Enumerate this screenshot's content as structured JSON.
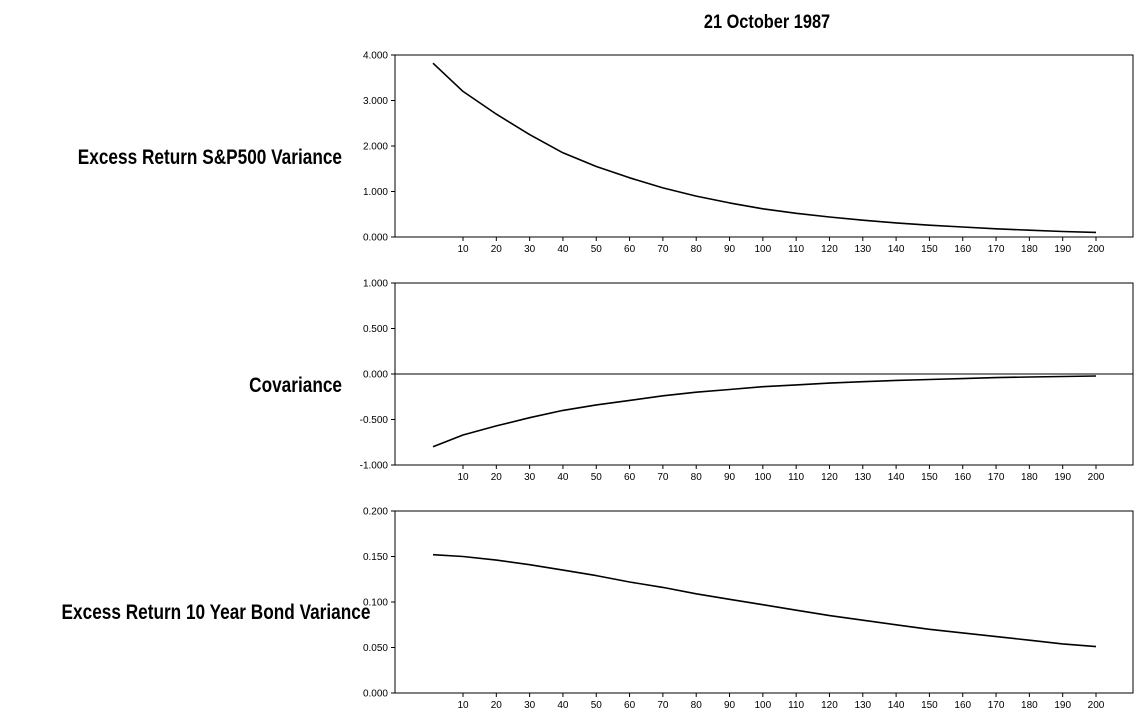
{
  "title": "21 October 1987",
  "chart_data": [
    {
      "type": "line",
      "ylabel": "Excess Return S&P500 Variance",
      "ylim": [
        0,
        4
      ],
      "yticks": [
        "0.000",
        "1.000",
        "2.000",
        "3.000",
        "4.000"
      ],
      "xticks": [
        "10",
        "20",
        "30",
        "40",
        "50",
        "60",
        "70",
        "80",
        "90",
        "100",
        "110",
        "120",
        "130",
        "140",
        "150",
        "160",
        "170",
        "180",
        "190",
        "200"
      ],
      "xlim": [
        1,
        200
      ],
      "zero_line": false,
      "series": [
        {
          "x": [
            1,
            10,
            20,
            30,
            40,
            50,
            60,
            70,
            80,
            90,
            100,
            110,
            120,
            130,
            140,
            150,
            160,
            170,
            180,
            190,
            200
          ],
          "y": [
            3.82,
            3.2,
            2.7,
            2.25,
            1.85,
            1.55,
            1.3,
            1.08,
            0.9,
            0.75,
            0.62,
            0.52,
            0.44,
            0.37,
            0.31,
            0.26,
            0.22,
            0.18,
            0.15,
            0.12,
            0.1
          ]
        }
      ]
    },
    {
      "type": "line",
      "ylabel": "Covariance",
      "ylim": [
        -1,
        1
      ],
      "yticks": [
        "-1.000",
        "-0.500",
        "0.000",
        "0.500",
        "1.000"
      ],
      "xticks": [
        "10",
        "20",
        "30",
        "40",
        "50",
        "60",
        "70",
        "80",
        "90",
        "100",
        "110",
        "120",
        "130",
        "140",
        "150",
        "160",
        "170",
        "180",
        "190",
        "200"
      ],
      "xlim": [
        1,
        200
      ],
      "zero_line": true,
      "series": [
        {
          "x": [
            1,
            10,
            20,
            30,
            40,
            50,
            60,
            70,
            80,
            90,
            100,
            110,
            120,
            130,
            140,
            150,
            160,
            170,
            180,
            190,
            200
          ],
          "y": [
            -0.8,
            -0.67,
            -0.57,
            -0.48,
            -0.4,
            -0.34,
            -0.29,
            -0.24,
            -0.2,
            -0.17,
            -0.14,
            -0.12,
            -0.1,
            -0.085,
            -0.07,
            -0.06,
            -0.05,
            -0.04,
            -0.033,
            -0.027,
            -0.022
          ]
        }
      ]
    },
    {
      "type": "line",
      "ylabel": "Excess Return 10 Year Bond Variance",
      "ylim": [
        0,
        0.2
      ],
      "yticks": [
        "0.000",
        "0.050",
        "0.100",
        "0.150",
        "0.200"
      ],
      "xticks": [
        "10",
        "20",
        "30",
        "40",
        "50",
        "60",
        "70",
        "80",
        "90",
        "100",
        "110",
        "120",
        "130",
        "140",
        "150",
        "160",
        "170",
        "180",
        "190",
        "200"
      ],
      "xlim": [
        1,
        200
      ],
      "zero_line": false,
      "series": [
        {
          "x": [
            1,
            10,
            20,
            30,
            40,
            50,
            60,
            70,
            80,
            90,
            100,
            110,
            120,
            130,
            140,
            150,
            160,
            170,
            180,
            190,
            200
          ],
          "y": [
            0.152,
            0.15,
            0.146,
            0.141,
            0.135,
            0.129,
            0.122,
            0.116,
            0.109,
            0.103,
            0.097,
            0.091,
            0.085,
            0.08,
            0.075,
            0.07,
            0.066,
            0.062,
            0.058,
            0.054,
            0.051
          ]
        }
      ]
    }
  ]
}
